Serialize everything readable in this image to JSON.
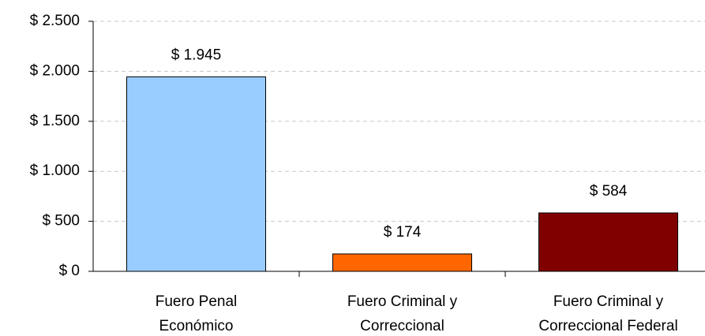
{
  "chart_data": {
    "type": "bar",
    "categories": [
      "Fuero Penal\nEconómico",
      "Fuero Criminal y\nCorreccional",
      "Fuero Criminal y\nCorreccional Federal"
    ],
    "values": [
      1945,
      174,
      584
    ],
    "value_labels": [
      "$ 1.945",
      "$ 174",
      "$ 584"
    ],
    "colors": [
      "#99ccff",
      "#ff6600",
      "#800000"
    ],
    "ylim": [
      0,
      2500
    ],
    "yticks": [
      {
        "value": 0,
        "label": "$ 0"
      },
      {
        "value": 500,
        "label": "$ 500"
      },
      {
        "value": 1000,
        "label": "$ 1.000"
      },
      {
        "value": 1500,
        "label": "$ 1.500"
      },
      {
        "value": 2000,
        "label": "$ 2.000"
      },
      {
        "value": 2500,
        "label": "$ 2.500"
      }
    ],
    "grid": true
  }
}
